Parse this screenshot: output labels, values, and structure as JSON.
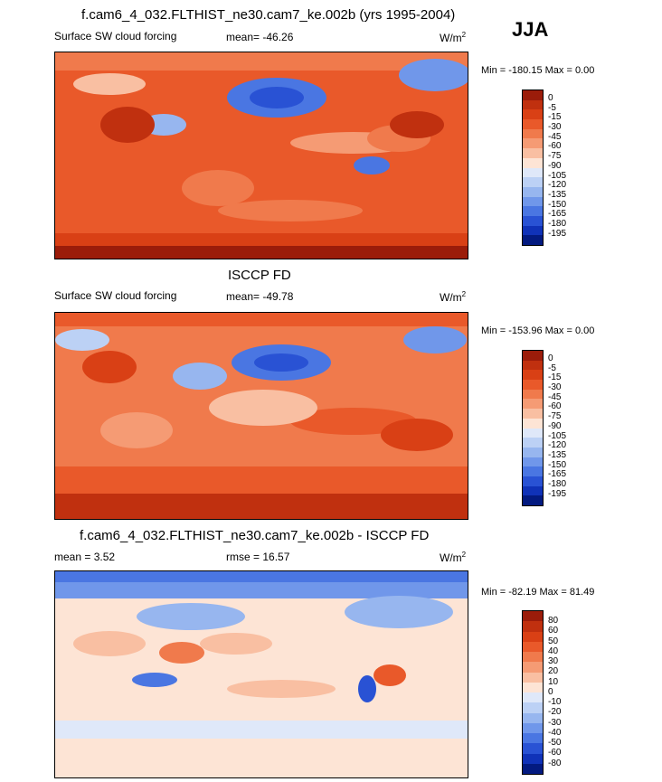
{
  "header": {
    "main_title": "f.cam6_4_032.FLTHIST_ne30.cam7_ke.002b (yrs 1995-2004)",
    "season": "JJA"
  },
  "panel1": {
    "left_label": "Surface SW cloud forcing",
    "mean_label": "mean= -46.26",
    "units_base": "W/m",
    "units_exp": "2",
    "minmax": "Min = -180.15 Max =   0.00"
  },
  "panel2": {
    "title": "ISCCP FD",
    "left_label": "Surface SW cloud forcing",
    "mean_label": "mean= -49.78",
    "units_base": "W/m",
    "units_exp": "2",
    "minmax": "Min = -153.96 Max =   0.00"
  },
  "panel3": {
    "title": "f.cam6_4_032.FLTHIST_ne30.cam7_ke.002b - ISCCP FD",
    "mean_label": "mean =   3.52",
    "rmse_label": "rmse =  16.57",
    "units_base": "W/m",
    "units_exp": "2",
    "minmax": "Min = -82.19 Max =  81.49"
  },
  "colorbar_abs": {
    "ticks": [
      "0",
      "-5",
      "-15",
      "-30",
      "-45",
      "-60",
      "-75",
      "-90",
      "-105",
      "-120",
      "-135",
      "-150",
      "-165",
      "-180",
      "-195"
    ],
    "colors": [
      "#9b1c0a",
      "#c0300f",
      "#d94015",
      "#e9592a",
      "#f07a4c",
      "#f59b74",
      "#f9bfa2",
      "#fde4d5",
      "#dfe8f9",
      "#bcd1f5",
      "#97b6ef",
      "#7097ea",
      "#4a76e2",
      "#2952d4",
      "#1032b8",
      "#031a80"
    ]
  },
  "colorbar_diff": {
    "ticks": [
      "80",
      "60",
      "50",
      "40",
      "30",
      "20",
      "10",
      "0",
      "-10",
      "-20",
      "-30",
      "-40",
      "-50",
      "-60",
      "-80"
    ],
    "colors": [
      "#9b1c0a",
      "#c0300f",
      "#d94015",
      "#e9592a",
      "#f07a4c",
      "#f59b74",
      "#f9bfa2",
      "#fde4d5",
      "#dfe8f9",
      "#bcd1f5",
      "#97b6ef",
      "#7097ea",
      "#4a76e2",
      "#2952d4",
      "#1032b8",
      "#031a80"
    ]
  }
}
